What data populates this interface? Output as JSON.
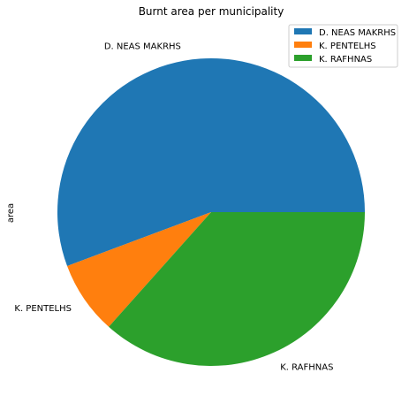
{
  "chart_data": {
    "type": "pie",
    "title": "Burnt area per municipality",
    "ylabel": "area",
    "categories": [
      "D. NEAS MAKRHS",
      "K. PENTELHS",
      "K. RAFHNAS"
    ],
    "values": [
      55.7,
      7.7,
      36.6
    ],
    "colors": [
      "#1f77b4",
      "#ff7f0e",
      "#2ca02c"
    ],
    "start_angle_deg": 0,
    "direction": "counterclockwise",
    "legend_position": "top-right"
  }
}
